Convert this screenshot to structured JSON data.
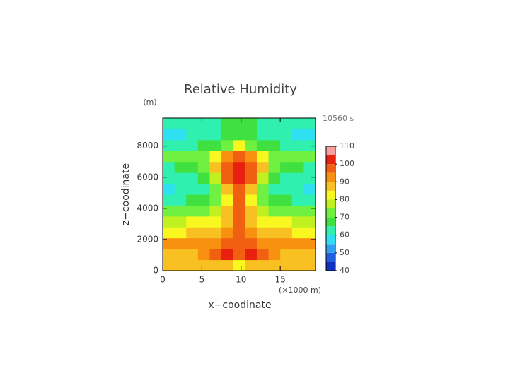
{
  "chart_data": {
    "type": "contour",
    "title": "Relative Humidity",
    "xlabel": "x−coodinate",
    "ylabel": "z−coodinate",
    "xunit": "(×1000 m)",
    "yunit": "(m)",
    "time_label": "10560 s",
    "xlim": [
      0,
      19.5
    ],
    "ylim": [
      0,
      9800
    ],
    "xticks": [
      0,
      5,
      10,
      15
    ],
    "yticks": [
      0,
      2000,
      4000,
      6000,
      8000
    ],
    "x": [
      0.75,
      2.25,
      3.75,
      5.25,
      6.75,
      8.25,
      9.75,
      11.25,
      12.75,
      14.25,
      15.75,
      17.25,
      18.75
    ],
    "y": [
      350,
      1050,
      1750,
      2450,
      3150,
      3850,
      4550,
      5250,
      5950,
      6650,
      7350,
      8050,
      8750,
      9450
    ],
    "values": [
      [
        87,
        87,
        87,
        87,
        88,
        86,
        82,
        86,
        88,
        87,
        87,
        87,
        87
      ],
      [
        88,
        88,
        89,
        90,
        95,
        100,
        96,
        100,
        95,
        90,
        89,
        88,
        88
      ],
      [
        92,
        90,
        90,
        90,
        92,
        96,
        98,
        96,
        92,
        90,
        90,
        90,
        92
      ],
      [
        84,
        84,
        85,
        86,
        88,
        93,
        99,
        93,
        88,
        86,
        85,
        84,
        84
      ],
      [
        79,
        79,
        80,
        82,
        84,
        88,
        96,
        88,
        84,
        82,
        80,
        79,
        79
      ],
      [
        70,
        70,
        72,
        74,
        78,
        85,
        95,
        85,
        78,
        74,
        72,
        70,
        70
      ],
      [
        62,
        64,
        66,
        68,
        72,
        84,
        96,
        84,
        72,
        68,
        66,
        64,
        62
      ],
      [
        58,
        60,
        62,
        64,
        72,
        88,
        98,
        88,
        72,
        64,
        62,
        60,
        58
      ],
      [
        60,
        61,
        63,
        66,
        76,
        95,
        102,
        95,
        76,
        66,
        63,
        61,
        60
      ],
      [
        63,
        65,
        66,
        74,
        88,
        98,
        103,
        98,
        88,
        74,
        66,
        65,
        63
      ],
      [
        70,
        72,
        72,
        73,
        80,
        90,
        96,
        90,
        80,
        73,
        72,
        72,
        70
      ],
      [
        60,
        62,
        64,
        66,
        68,
        72,
        80,
        72,
        68,
        66,
        64,
        62,
        60
      ],
      [
        56,
        58,
        60,
        60,
        62,
        66,
        68,
        66,
        62,
        60,
        60,
        58,
        56
      ],
      [
        60,
        60,
        61,
        62,
        64,
        67,
        68,
        67,
        64,
        62,
        61,
        60,
        60
      ]
    ],
    "levels": [
      40,
      45,
      50,
      55,
      60,
      65,
      70,
      75,
      80,
      85,
      90,
      95,
      100,
      105,
      110
    ],
    "colors": [
      "#1030c0",
      "#2060e0",
      "#30a0f0",
      "#30e0f0",
      "#30f0b0",
      "#40e040",
      "#70f040",
      "#c0f020",
      "#f8f820",
      "#f8c020",
      "#f89010",
      "#f06010",
      "#e82010",
      "#f8a0a0"
    ],
    "colorbar_ticks": [
      40,
      50,
      60,
      70,
      80,
      90,
      100,
      110
    ]
  }
}
